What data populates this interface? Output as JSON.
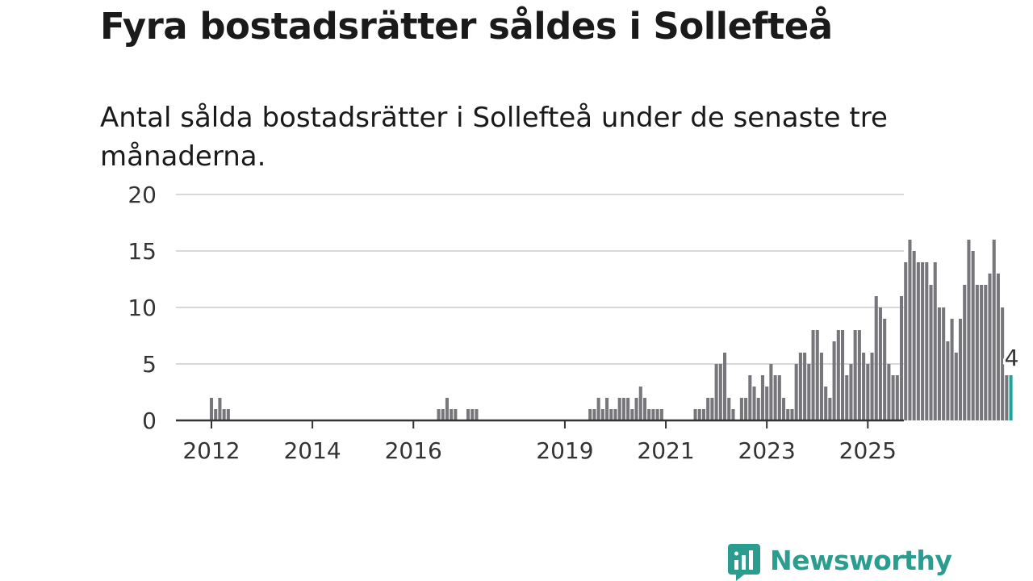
{
  "title": "Fyra bostadsrätter såldes i Sollefteå",
  "subtitle": "Antal sålda bostadsrätter i Sollefteå under de senaste tre månaderna.",
  "colors": {
    "bar": "#77777b",
    "highlight": "#1ca39c",
    "grid": "#d9d9d9",
    "axis": "#333333",
    "brand": "#2a9d8f"
  },
  "brand": {
    "name": "Newsworthy",
    "icon": "chart-speech-bubble-icon"
  },
  "chart_data": {
    "type": "bar",
    "y_ticks": [
      0,
      5,
      10,
      15,
      20
    ],
    "ylim": [
      0,
      20
    ],
    "x_ticks": [
      "2012",
      "2014",
      "2016",
      "2019",
      "2021",
      "2023",
      "2025"
    ],
    "grid": true,
    "highlight_label": "4",
    "series": [
      {
        "start": "2012-01",
        "values": [
          2,
          1,
          2,
          1,
          1,
          0,
          0,
          0,
          0,
          0,
          0,
          0,
          0,
          0,
          0,
          0,
          0,
          0,
          0,
          0,
          0,
          0,
          0,
          0,
          0,
          0,
          0,
          0,
          0,
          0,
          0,
          0,
          0,
          0,
          0,
          0,
          0,
          0,
          0,
          0,
          0,
          0,
          0,
          0,
          0,
          0,
          0,
          0,
          0,
          0,
          0,
          0,
          0,
          0,
          1,
          1,
          2,
          1,
          1,
          0,
          0,
          1,
          1,
          1,
          0,
          0,
          0,
          0,
          0,
          0,
          0,
          0,
          0,
          0,
          0,
          0,
          0,
          0,
          0,
          0,
          0,
          0,
          0,
          0,
          0,
          0,
          0,
          0,
          0,
          0,
          1,
          1,
          2,
          1,
          2,
          1,
          1,
          2,
          2,
          2,
          1,
          2,
          3,
          2,
          1,
          1,
          1,
          1,
          0,
          0,
          0,
          0,
          0,
          0,
          0,
          1,
          1,
          1,
          2,
          2,
          5,
          5,
          6,
          2,
          1,
          0,
          2,
          2,
          4,
          3,
          2,
          4,
          3,
          5,
          4,
          4,
          2,
          1,
          1,
          5,
          6,
          6,
          5,
          8,
          8,
          6,
          3,
          2,
          7,
          8,
          8,
          4,
          5,
          8,
          8,
          6,
          5,
          6,
          11,
          10,
          9,
          5,
          4,
          4,
          11,
          14,
          16,
          15,
          14,
          14,
          14,
          12,
          14,
          10,
          10,
          7,
          9,
          6,
          9,
          12,
          16,
          15,
          12,
          12,
          12,
          13,
          16,
          13,
          10,
          4,
          4
        ]
      }
    ]
  }
}
